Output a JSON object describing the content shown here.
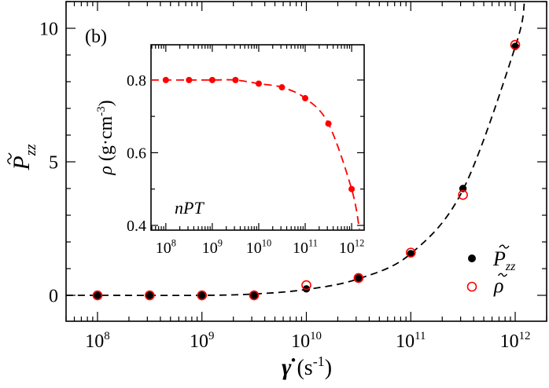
{
  "chart_data": [
    {
      "type": "scatter",
      "panel_label": "(b)",
      "xlabel": "γ̇",
      "xlabel_unit": "(s",
      "xlabel_unit_exp": "-1",
      "xlabel_unit_close": ")",
      "ylabel": "P",
      "ylabel_sub": "zz",
      "xscale": "log",
      "xlim": [
        50000000.0,
        2000000000000.0
      ],
      "ylim": [
        -0.97,
        11.0
      ],
      "xticks": [
        100000000.0,
        1000000000.0,
        10000000000.0,
        100000000000.0,
        1000000000000.0
      ],
      "xtick_labels": [
        {
          "base": "10",
          "exp": "8"
        },
        {
          "base": "10",
          "exp": "9"
        },
        {
          "base": "10",
          "exp": "10"
        },
        {
          "base": "10",
          "exp": "11"
        },
        {
          "base": "10",
          "exp": "12"
        }
      ],
      "yticks": [
        0,
        5,
        10
      ],
      "ytick_labels": [
        "0",
        "5",
        "10"
      ],
      "grid": false,
      "legend_position": "bottom-right",
      "series": [
        {
          "name": "P̃zz",
          "legend_main": "P",
          "legend_sub": "zz",
          "marker": "filled-circle",
          "color": "#000000",
          "x": [
            100000000.0,
            316000000.0,
            1000000000.0,
            3160000000.0,
            10000000000.0,
            31600000000.0,
            100000000000.0,
            316000000000.0,
            1000000000000.0
          ],
          "y": [
            0,
            0,
            0,
            0,
            0.24,
            0.65,
            1.56,
            4.0,
            9.32
          ]
        },
        {
          "name": "ρ̃",
          "legend_main": "ρ",
          "legend_sub": "",
          "marker": "open-circle",
          "color": "#ff0000",
          "x": [
            100000000.0,
            316000000.0,
            1000000000.0,
            3160000000.0,
            10000000000.0,
            31600000000.0,
            100000000000.0,
            316000000000.0,
            1000000000000.0
          ],
          "y": [
            0,
            0,
            0,
            0,
            0.38,
            0.65,
            1.6,
            3.76,
            9.38
          ]
        }
      ],
      "fit_curve": {
        "color": "#000000",
        "style": "dashed",
        "x": [
          50000000.0,
          100000000.0,
          1000000000.0,
          3160000000.0,
          10000000000.0,
          31600000000.0,
          100000000000.0,
          316000000000.0,
          1000000000000.0,
          1230000000000.0
        ],
        "y": [
          0,
          0,
          0.0,
          0.05,
          0.22,
          0.62,
          1.56,
          3.95,
          9.3,
          11.0
        ]
      }
    },
    {
      "type": "line",
      "annotation": "nPT",
      "ylabel": "ρ",
      "ylabel_unit": "(g·cm",
      "ylabel_unit_exp": "-3",
      "ylabel_unit_close": ")",
      "xscale": "log",
      "xlim": [
        48000000.0,
        1860000000000.0
      ],
      "ylim": [
        0.387,
        0.897
      ],
      "xticks": [
        100000000.0,
        1000000000.0,
        10000000000.0,
        100000000000.0,
        1000000000000.0
      ],
      "xtick_labels": [
        {
          "base": "10",
          "exp": "8"
        },
        {
          "base": "10",
          "exp": "9"
        },
        {
          "base": "10",
          "exp": "10"
        },
        {
          "base": "10",
          "exp": "11"
        },
        {
          "base": "10",
          "exp": "12"
        }
      ],
      "yticks": [
        0.4,
        0.6,
        0.8
      ],
      "ytick_labels": [
        "0.4",
        "0.6",
        "0.8"
      ],
      "grid": false,
      "series": [
        {
          "marker": "filled-circle",
          "color": "#ff0000",
          "line": "dashed",
          "x": [
            100000000.0,
            316000000.0,
            1000000000.0,
            3160000000.0,
            10000000000.0,
            31600000000.0,
            100000000000.0,
            316000000000.0,
            1000000000000.0
          ],
          "y": [
            0.8,
            0.8,
            0.8,
            0.8,
            0.79,
            0.78,
            0.75,
            0.68,
            0.5
          ]
        }
      ],
      "fit_curve": {
        "color": "#ff0000",
        "style": "dashed",
        "x": [
          48000000.0,
          100000000.0,
          1000000000.0,
          3160000000.0,
          10000000000.0,
          31600000000.0,
          100000000000.0,
          316000000000.0,
          1000000000000.0,
          1480000000000.0
        ],
        "y": [
          0.8,
          0.8,
          0.8,
          0.8,
          0.79,
          0.78,
          0.75,
          0.68,
          0.5,
          0.387
        ]
      }
    }
  ]
}
